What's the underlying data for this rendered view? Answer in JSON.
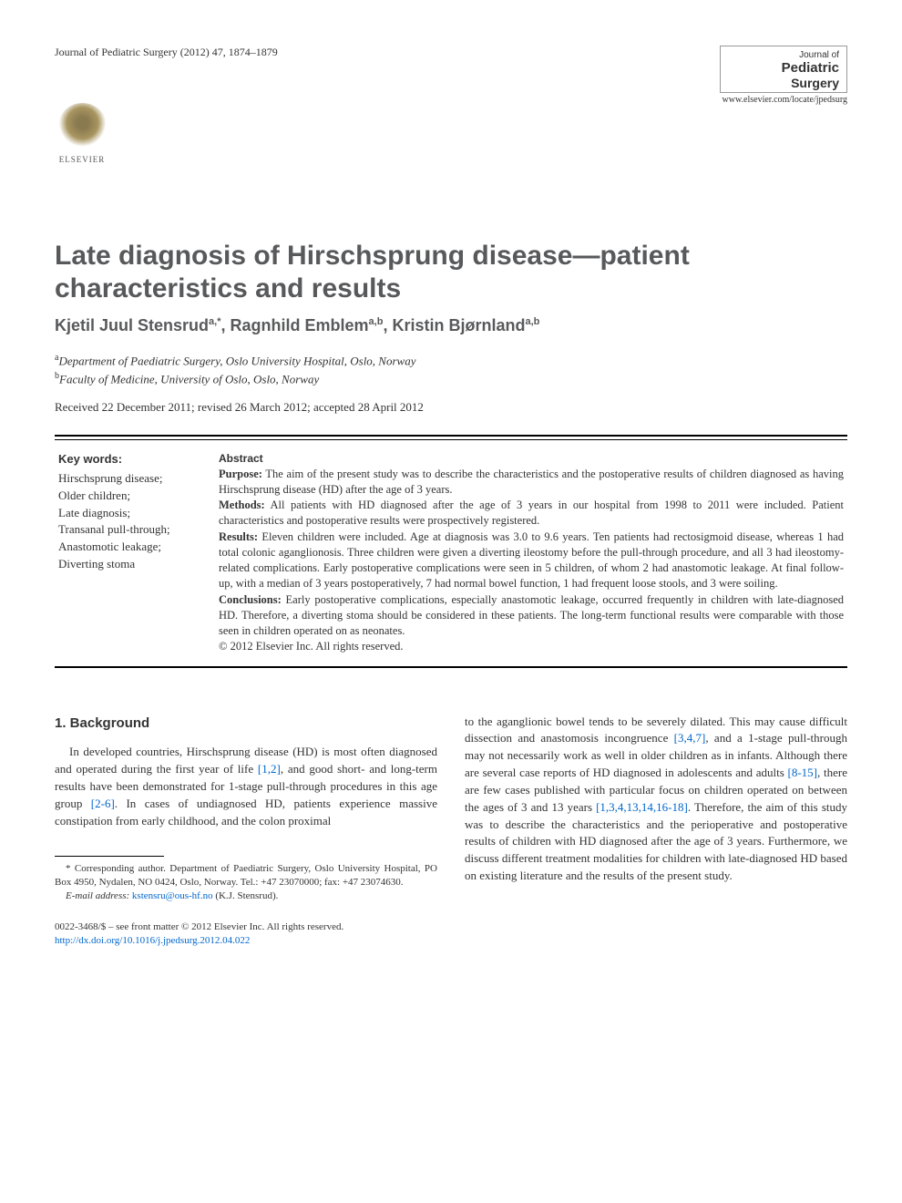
{
  "header": {
    "citation": "Journal of Pediatric Surgery (2012) 47, 1874–1879",
    "journal_of": "Journal of",
    "journal_name1": "Pediatric",
    "journal_name2": "Surgery",
    "journal_url": "www.elsevier.com/locate/jpedsurg",
    "publisher": "ELSEVIER"
  },
  "article": {
    "title": "Late diagnosis of Hirschsprung disease—patient characteristics and results",
    "authors_html": "Kjetil Juul Stensrud|a,*|, Ragnhild Emblem|a,b|, Kristin Bjørnland|a,b|",
    "authors": [
      {
        "name": "Kjetil Juul Stensrud",
        "sup": "a,*"
      },
      {
        "name": "Ragnhild Emblem",
        "sup": "a,b"
      },
      {
        "name": "Kristin Bjørnland",
        "sup": "a,b"
      }
    ],
    "affiliations": [
      {
        "sup": "a",
        "text": "Department of Paediatric Surgery, Oslo University Hospital, Oslo, Norway"
      },
      {
        "sup": "b",
        "text": "Faculty of Medicine, University of Oslo, Oslo, Norway"
      }
    ],
    "dates": "Received 22 December 2011; revised 26 March 2012; accepted 28 April 2012"
  },
  "keywords": {
    "heading": "Key words:",
    "items": "Hirschsprung disease;\nOlder children;\nLate diagnosis;\nTransanal pull-through;\nAnastomotic leakage;\nDiverting stoma"
  },
  "abstract": {
    "heading": "Abstract",
    "purpose_label": "Purpose:",
    "purpose": " The aim of the present study was to describe the characteristics and the postoperative results of children diagnosed as having Hirschsprung disease (HD) after the age of 3 years.",
    "methods_label": "Methods:",
    "methods": " All patients with HD diagnosed after the age of 3 years in our hospital from 1998 to 2011 were included. Patient characteristics and postoperative results were prospectively registered.",
    "results_label": "Results:",
    "results": " Eleven children were included. Age at diagnosis was 3.0 to 9.6 years. Ten patients had rectosigmoid disease, whereas 1 had total colonic aganglionosis. Three children were given a diverting ileostomy before the pull-through procedure, and all 3 had ileostomy-related complications. Early postoperative complications were seen in 5 children, of whom 2 had anastomotic leakage. At final follow-up, with a median of 3 years postoperatively, 7 had normal bowel function, 1 had frequent loose stools, and 3 were soiling.",
    "conclusions_label": "Conclusions:",
    "conclusions": " Early postoperative complications, especially anastomotic leakage, occurred frequently in children with late-diagnosed HD. Therefore, a diverting stoma should be considered in these patients. The long-term functional results were comparable with those seen in children operated on as neonates.",
    "copyright": "© 2012 Elsevier Inc. All rights reserved."
  },
  "body": {
    "section_heading": "1. Background",
    "col1_pre": "In developed countries, Hirschsprung disease (HD) is most often diagnosed and operated during the first year of life ",
    "col1_ref1": "[1,2]",
    "col1_mid1": ", and good short- and long-term results have been demonstrated for 1-stage pull-through procedures in this age group ",
    "col1_ref2": "[2-6]",
    "col1_mid2": ". In cases of undiagnosed HD, patients experience massive constipation from early childhood, and the colon proximal",
    "col2_pre": "to the aganglionic bowel tends to be severely dilated. This may cause difficult dissection and anastomosis incongruence ",
    "col2_ref1": "[3,4,7]",
    "col2_mid1": ", and a 1-stage pull-through may not necessarily work as well in older children as in infants. Although there are several case reports of HD diagnosed in adolescents and adults ",
    "col2_ref2": "[8-15]",
    "col2_mid2": ", there are few cases published with particular focus on children operated on between the ages of 3 and 13 years ",
    "col2_ref3": "[1,3,4,13,14,16-18]",
    "col2_mid3": ". Therefore, the aim of this study was to describe the characteristics and the perioperative and postoperative results of children with HD diagnosed after the age of 3 years. Furthermore, we discuss different treatment modalities for children with late-diagnosed HD based on existing literature and the results of the present study."
  },
  "footnote": {
    "corresponding": "* Corresponding author. Department of Paediatric Surgery, Oslo University Hospital, PO Box 4950, Nydalen, NO 0424, Oslo, Norway. Tel.: +47 23070000; fax: +47 23074630.",
    "email_label": "E-mail address:",
    "email": "kstensru@ous-hf.no",
    "email_suffix": " (K.J. Stensrud)."
  },
  "bottom": {
    "issn_line": "0022-3468/$ – see front matter © 2012 Elsevier Inc. All rights reserved.",
    "doi": "http://dx.doi.org/10.1016/j.jpedsurg.2012.04.022"
  },
  "colors": {
    "text": "#333333",
    "heading_gray": "#58595b",
    "link_blue": "#0066cc",
    "rule": "#000000",
    "bg": "#ffffff"
  },
  "typography": {
    "title_fontsize_pt": 23,
    "authors_fontsize_pt": 14,
    "body_fontsize_pt": 10,
    "abstract_fontsize_pt": 9.5,
    "footnote_fontsize_pt": 8.5
  }
}
